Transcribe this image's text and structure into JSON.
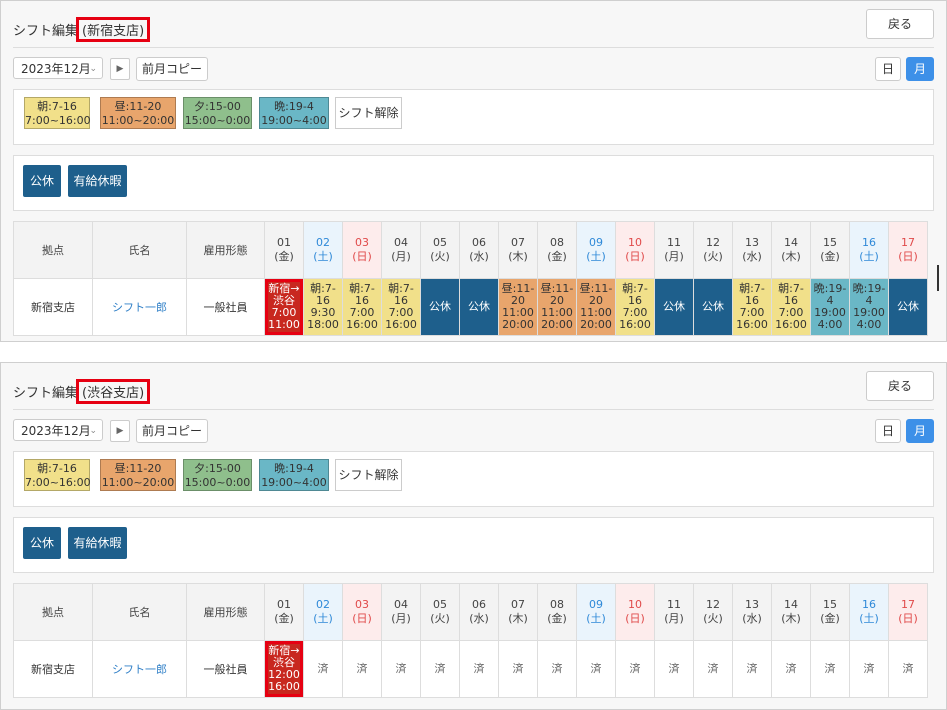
{
  "panels": [
    {
      "title_prefix": "シフト編集",
      "title_branch": "(新宿支店)",
      "back_label": "戻る",
      "month": "2023年12月",
      "copy_label": "前月コピー",
      "day_view": "日",
      "month_view": "月",
      "legend": {
        "morning": {
          "name": "朝:7-16",
          "time": "7:00~16:00"
        },
        "noon": {
          "name": "昼:11-20",
          "time": "11:00~20:00"
        },
        "evening": {
          "name": "夕:15-00",
          "time": "15:00~0:00"
        },
        "night": {
          "name": "晩:19-4",
          "time": "19:00~4:00"
        },
        "clear": "シフト解除"
      },
      "holiday_buttons": {
        "kokyu": "公休",
        "yukyu": "有給休暇"
      },
      "headers": {
        "base": "拠点",
        "name": "氏名",
        "employment": "雇用形態"
      },
      "row": {
        "base": "新宿支店",
        "name": "シフト一郎",
        "employment": "一般社員"
      },
      "cells": [
        {
          "type": "move",
          "lines": [
            "新宿→",
            "渋谷",
            "7:00",
            "11:00"
          ]
        },
        {
          "type": "morning",
          "lines": [
            "朝:7-16",
            "9:30",
            "18:00"
          ]
        },
        {
          "type": "morning",
          "lines": [
            "朝:7-16",
            "7:00",
            "16:00"
          ]
        },
        {
          "type": "morning",
          "lines": [
            "朝:7-16",
            "7:00",
            "16:00"
          ]
        },
        {
          "type": "kokyu",
          "lines": [
            "公休"
          ]
        },
        {
          "type": "kokyu",
          "lines": [
            "公休"
          ]
        },
        {
          "type": "noon",
          "lines": [
            "昼:11-20",
            "11:00",
            "20:00"
          ]
        },
        {
          "type": "noon",
          "lines": [
            "昼:11-20",
            "11:00",
            "20:00"
          ]
        },
        {
          "type": "noon",
          "lines": [
            "昼:11-20",
            "11:00",
            "20:00"
          ]
        },
        {
          "type": "morning",
          "lines": [
            "朝:7-16",
            "7:00",
            "16:00"
          ]
        },
        {
          "type": "kokyu",
          "lines": [
            "公休"
          ]
        },
        {
          "type": "kokyu",
          "lines": [
            "公休"
          ]
        },
        {
          "type": "morning",
          "lines": [
            "朝:7-16",
            "7:00",
            "16:00"
          ]
        },
        {
          "type": "morning",
          "lines": [
            "朝:7-16",
            "7:00",
            "16:00"
          ]
        },
        {
          "type": "night",
          "lines": [
            "晩:19-4",
            "19:00",
            "4:00"
          ]
        },
        {
          "type": "night",
          "lines": [
            "晩:19-4",
            "19:00",
            "4:00"
          ]
        },
        {
          "type": "kokyu",
          "lines": [
            "公休"
          ]
        }
      ]
    },
    {
      "title_prefix": "シフト編集",
      "title_branch": "(渋谷支店)",
      "back_label": "戻る",
      "month": "2023年12月",
      "copy_label": "前月コピー",
      "day_view": "日",
      "month_view": "月",
      "legend": {
        "morning": {
          "name": "朝:7-16",
          "time": "7:00~16:00"
        },
        "noon": {
          "name": "昼:11-20",
          "time": "11:00~20:00"
        },
        "evening": {
          "name": "夕:15-00",
          "time": "15:00~0:00"
        },
        "night": {
          "name": "晩:19-4",
          "time": "19:00~4:00"
        },
        "clear": "シフト解除"
      },
      "holiday_buttons": {
        "kokyu": "公休",
        "yukyu": "有給休暇"
      },
      "headers": {
        "base": "拠点",
        "name": "氏名",
        "employment": "雇用形態"
      },
      "row": {
        "base": "新宿支店",
        "name": "シフト一郎",
        "employment": "一般社員"
      },
      "cells": [
        {
          "type": "move",
          "lines": [
            "新宿→",
            "渋谷",
            "12:00",
            "16:00"
          ]
        },
        {
          "type": "done",
          "lines": [
            "済"
          ]
        },
        {
          "type": "done",
          "lines": [
            "済"
          ]
        },
        {
          "type": "done",
          "lines": [
            "済"
          ]
        },
        {
          "type": "done",
          "lines": [
            "済"
          ]
        },
        {
          "type": "done",
          "lines": [
            "済"
          ]
        },
        {
          "type": "done",
          "lines": [
            "済"
          ]
        },
        {
          "type": "done",
          "lines": [
            "済"
          ]
        },
        {
          "type": "done",
          "lines": [
            "済"
          ]
        },
        {
          "type": "done",
          "lines": [
            "済"
          ]
        },
        {
          "type": "done",
          "lines": [
            "済"
          ]
        },
        {
          "type": "done",
          "lines": [
            "済"
          ]
        },
        {
          "type": "done",
          "lines": [
            "済"
          ]
        },
        {
          "type": "done",
          "lines": [
            "済"
          ]
        },
        {
          "type": "done",
          "lines": [
            "済"
          ]
        },
        {
          "type": "done",
          "lines": [
            "済"
          ]
        },
        {
          "type": "done",
          "lines": [
            "済"
          ]
        }
      ]
    }
  ],
  "days": [
    {
      "d": "01",
      "w": "(金)",
      "kind": "weekday"
    },
    {
      "d": "02",
      "w": "(土)",
      "kind": "sat"
    },
    {
      "d": "03",
      "w": "(日)",
      "kind": "sun"
    },
    {
      "d": "04",
      "w": "(月)",
      "kind": "weekday"
    },
    {
      "d": "05",
      "w": "(火)",
      "kind": "weekday"
    },
    {
      "d": "06",
      "w": "(水)",
      "kind": "weekday"
    },
    {
      "d": "07",
      "w": "(木)",
      "kind": "weekday"
    },
    {
      "d": "08",
      "w": "(金)",
      "kind": "weekday"
    },
    {
      "d": "09",
      "w": "(土)",
      "kind": "sat"
    },
    {
      "d": "10",
      "w": "(日)",
      "kind": "sun"
    },
    {
      "d": "11",
      "w": "(月)",
      "kind": "weekday"
    },
    {
      "d": "12",
      "w": "(火)",
      "kind": "weekday"
    },
    {
      "d": "13",
      "w": "(水)",
      "kind": "weekday"
    },
    {
      "d": "14",
      "w": "(木)",
      "kind": "weekday"
    },
    {
      "d": "15",
      "w": "(金)",
      "kind": "weekday"
    },
    {
      "d": "16",
      "w": "(土)",
      "kind": "sat"
    },
    {
      "d": "17",
      "w": "(日)",
      "kind": "sun"
    }
  ],
  "colors": {
    "kokyu": "#1e5f8c",
    "morning": "#f1e08a",
    "noon": "#e8a56c",
    "evening": "#8fbf8c",
    "night": "#6ab7c6",
    "move": "#c8281f",
    "highlight": "#e60012",
    "active_view": "#3d90e8"
  }
}
